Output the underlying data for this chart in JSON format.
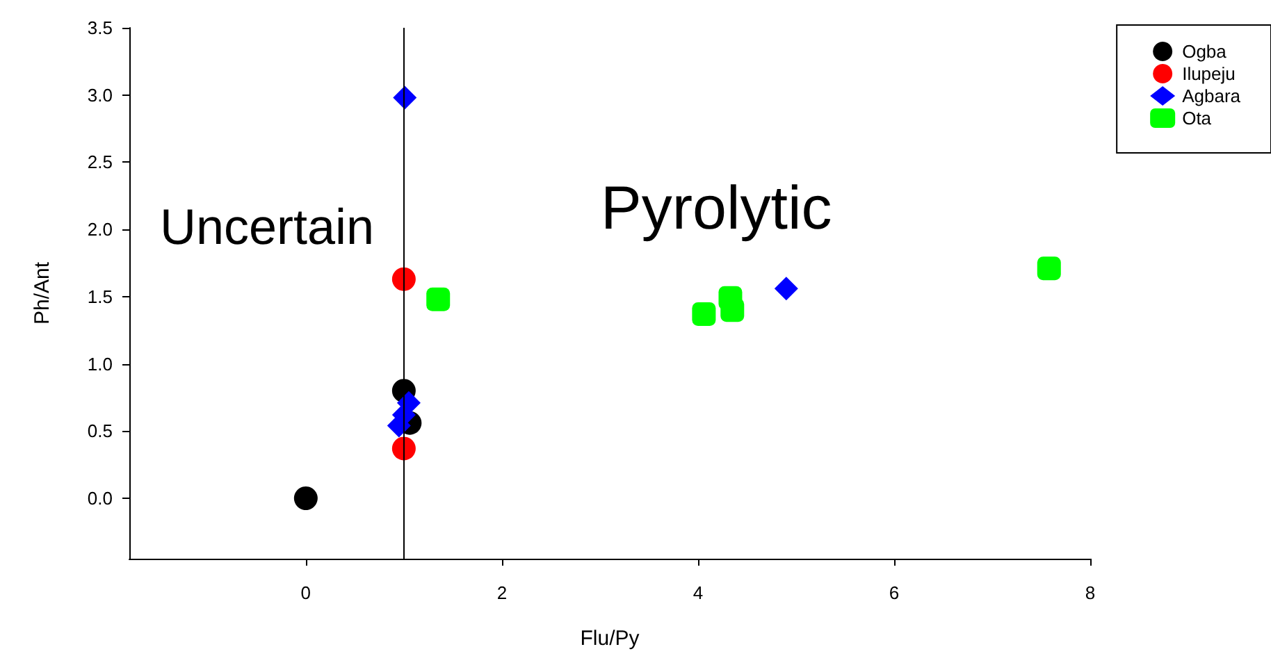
{
  "chart_data": {
    "type": "scatter",
    "xlabel": "Flu/Py",
    "ylabel": "Ph/Ant",
    "xlim": [
      -1.8,
      8
    ],
    "xticks": [
      0,
      2,
      4,
      6,
      8
    ],
    "ylim": [
      -0.45,
      3.5
    ],
    "yticks": [
      {
        "value": 0,
        "label": "0.0"
      },
      {
        "value": 0.5,
        "label": "0.5"
      },
      {
        "value": 1,
        "label": "1.0"
      },
      {
        "value": 1.5,
        "label": "1.5"
      },
      {
        "value": 2,
        "label": "2.0"
      },
      {
        "value": 2.5,
        "label": "2.5"
      },
      {
        "value": 3,
        "label": "3.0"
      },
      {
        "value": 3.5,
        "label": "3.5"
      }
    ],
    "grid": false,
    "legend": "top right",
    "ref_lines": [
      {
        "axis": "x",
        "value": 1,
        "color": "#000000"
      }
    ],
    "annotations": [
      "Uncertain",
      "Pyrolytic"
    ],
    "series": [
      {
        "name": "Ogba",
        "color": "#000000",
        "marker": "circle",
        "x": [
          0,
          1,
          1.06
        ],
        "values": [
          0,
          0.8,
          0.56
        ]
      },
      {
        "name": "Ilupeju",
        "color": "#ff0000",
        "marker": "circle",
        "x": [
          1,
          1
        ],
        "values": [
          1.63,
          0.37
        ]
      },
      {
        "name": "Agbara",
        "color": "#0000ff",
        "marker": "diamond",
        "x": [
          1.01,
          4.9,
          1.05,
          1.0,
          0.95
        ],
        "values": [
          2.98,
          1.56,
          0.71,
          0.62,
          0.54
        ]
      },
      {
        "name": "Ota",
        "color": "#00ff00",
        "marker": "square",
        "x": [
          1.35,
          4.06,
          4.33,
          4.35,
          7.58
        ],
        "values": [
          1.48,
          1.37,
          1.49,
          1.4,
          1.71
        ]
      }
    ]
  }
}
